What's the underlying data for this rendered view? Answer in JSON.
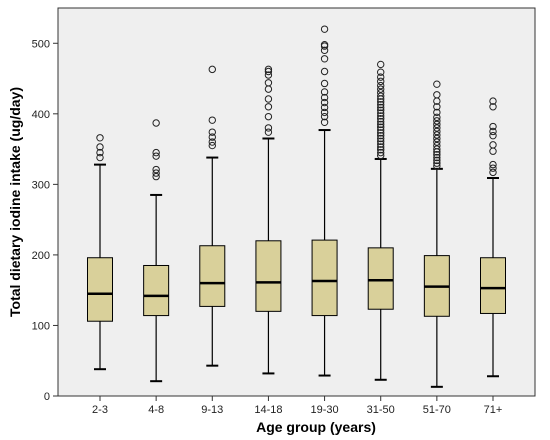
{
  "chart_data": {
    "type": "boxplot",
    "xlabel": "Age group (years)",
    "ylabel": "Total dietary iodine intake (ug/day)",
    "ylim": [
      0,
      550
    ],
    "yticks": [
      0,
      100,
      200,
      300,
      400,
      500
    ],
    "grid": false,
    "legend": "none",
    "box_color": "#d9d09a",
    "plot_background": "#efefef",
    "categories": [
      "2-3",
      "4-8",
      "9-13",
      "14-18",
      "19-30",
      "31-50",
      "51-70",
      "71+"
    ],
    "boxes": [
      {
        "category": "2-3",
        "whisker_low": 38,
        "q1": 106,
        "median": 145,
        "q3": 196,
        "whisker_high": 328,
        "outliers": [
          338,
          345,
          353,
          366
        ]
      },
      {
        "category": "4-8",
        "whisker_low": 21,
        "q1": 114,
        "median": 142,
        "q3": 185,
        "whisker_high": 285,
        "outliers": [
          311,
          316,
          321,
          340,
          345,
          387
        ]
      },
      {
        "category": "9-13",
        "whisker_low": 43,
        "q1": 127,
        "median": 160,
        "q3": 213,
        "whisker_high": 338,
        "outliers": [
          355,
          360,
          367,
          374,
          391,
          463
        ]
      },
      {
        "category": "14-18",
        "whisker_low": 32,
        "q1": 120,
        "median": 161,
        "q3": 220,
        "whisker_high": 365,
        "outliers": [
          374,
          380,
          396,
          410,
          421,
          435,
          444,
          455,
          460,
          463
        ]
      },
      {
        "category": "19-30",
        "whisker_low": 29,
        "q1": 114,
        "median": 163,
        "q3": 221,
        "whisker_high": 377,
        "outliers": [
          388,
          396,
          402,
          409,
          416,
          423,
          431,
          443,
          460,
          478,
          490,
          496,
          498,
          520
        ]
      },
      {
        "category": "31-50",
        "whisker_low": 23,
        "q1": 123,
        "median": 164,
        "q3": 210,
        "whisker_high": 336,
        "outliers": [
          341,
          345,
          349,
          353,
          357,
          361,
          365,
          369,
          373,
          377,
          381,
          385,
          389,
          393,
          397,
          401,
          405,
          409,
          413,
          417,
          421,
          425,
          430,
          435,
          440,
          446,
          452,
          459,
          470
        ]
      },
      {
        "category": "51-70",
        "whisker_low": 13,
        "q1": 113,
        "median": 155,
        "q3": 199,
        "whisker_high": 322,
        "outliers": [
          326,
          330,
          334,
          338,
          342,
          346,
          350,
          355,
          360,
          365,
          370,
          375,
          380,
          385,
          390,
          395,
          402,
          410,
          418,
          427,
          442
        ]
      },
      {
        "category": "71+",
        "whisker_low": 28,
        "q1": 117,
        "median": 153,
        "q3": 196,
        "whisker_high": 309,
        "outliers": [
          317,
          323,
          328,
          347,
          356,
          369,
          375,
          382,
          410,
          418
        ]
      }
    ]
  }
}
